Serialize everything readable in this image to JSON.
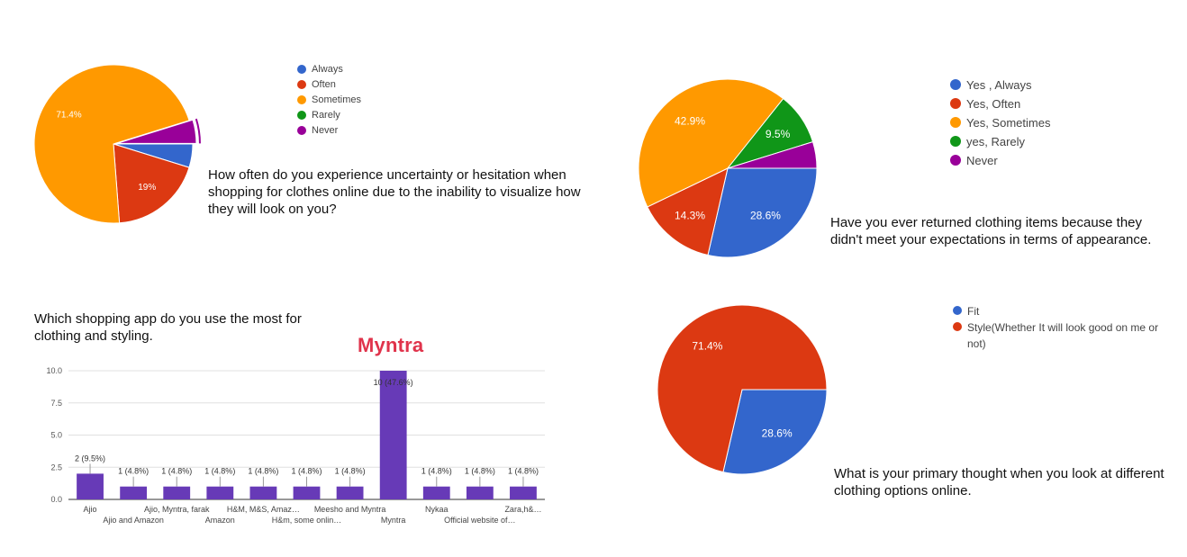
{
  "chart_data": [
    {
      "id": "chart1",
      "type": "pie",
      "title": "How often do you experience uncertainty or hesitation when shopping for clothes online due to the inability to visualize how they will look on you?",
      "legend_position": "right",
      "slices": [
        {
          "label": "Always",
          "value": 4.8,
          "display": "",
          "color": "#3366cc"
        },
        {
          "label": "Often",
          "value": 19.0,
          "display": "19%",
          "color": "#dc3912"
        },
        {
          "label": "Sometimes",
          "value": 71.4,
          "display": "71.4%",
          "color": "#ff9900"
        },
        {
          "label": "Rarely",
          "value": 0,
          "display": "",
          "color": "#109618"
        },
        {
          "label": "Never",
          "value": 4.8,
          "display": "",
          "color": "#990099"
        }
      ]
    },
    {
      "id": "chart2",
      "type": "pie",
      "title": "Have you ever returned clothing items because they didn't meet your expectations in terms of appearance.",
      "legend_position": "right",
      "slices": [
        {
          "label": "Yes , Always",
          "value": 28.6,
          "display": "28.6%",
          "color": "#3366cc"
        },
        {
          "label": "Yes, Often",
          "value": 14.3,
          "display": "14.3%",
          "color": "#dc3912"
        },
        {
          "label": "Yes, Sometimes",
          "value": 42.9,
          "display": "42.9%",
          "color": "#ff9900"
        },
        {
          "label": "yes, Rarely",
          "value": 9.5,
          "display": "9.5%",
          "color": "#109618"
        },
        {
          "label": "Never",
          "value": 4.8,
          "display": "",
          "color": "#990099"
        }
      ]
    },
    {
      "id": "chart3",
      "type": "bar",
      "title": "Which shopping app do you use the most for clothing and styling.",
      "highlight": "Myntra",
      "ylim": [
        0,
        10
      ],
      "yticks": [
        "0.0",
        "2.5",
        "5.0",
        "7.5",
        "10.0"
      ],
      "ytick_values": [
        0,
        2.5,
        5,
        7.5,
        10
      ],
      "color": "#673ab7",
      "categories": [
        "Ajio",
        "Ajio and Amazon",
        "Ajio, Myntra, farak",
        "Amazon",
        "H&M, M&S, Amaz…",
        "H&m, some onlin…",
        "Meesho and Myntra",
        "Myntra",
        "Nykaa",
        "Official website of…",
        "Zara,h&…"
      ],
      "values": [
        2,
        1,
        1,
        1,
        1,
        1,
        1,
        10,
        1,
        1,
        1
      ],
      "labels": [
        "2 (9.5%)",
        "1 (4.8%)",
        "1 (4.8%)",
        "1 (4.8%)",
        "1 (4.8%)",
        "1 (4.8%)",
        "1 (4.8%)",
        "10 (47.6%)",
        "1 (4.8%)",
        "1 (4.8%)",
        "1 (4.8%)"
      ]
    },
    {
      "id": "chart4",
      "type": "pie",
      "title": "What is your primary thought when you look at different clothing options online.",
      "legend_position": "right",
      "slices": [
        {
          "label": "Fit",
          "value": 28.6,
          "display": "28.6%",
          "color": "#3366cc"
        },
        {
          "label": "Style(Whether It will look good on me or not)",
          "value": 71.4,
          "display": "71.4%",
          "color": "#dc3912"
        }
      ]
    }
  ]
}
